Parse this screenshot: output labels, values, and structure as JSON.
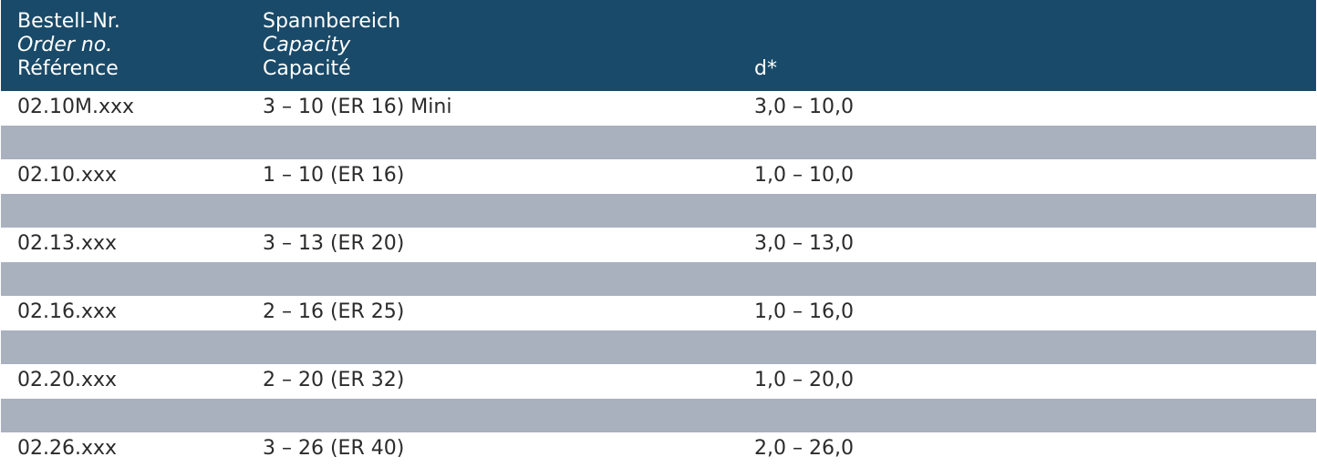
{
  "header": {
    "col1": [
      "Bestell-Nr.",
      "Order no.",
      "Référence"
    ],
    "col2": [
      "Spannbereich",
      "Capacity",
      "Capacité"
    ],
    "col3": "d*"
  },
  "rows": [
    {
      "order": "02.10M.xxx",
      "capacity": "3 – 10  (ER 16) Mini",
      "d": "3,0 – 10,0"
    },
    {
      "order": "02.10.xxx",
      "capacity": "1 – 10  (ER 16)",
      "d": "1,0 – 10,0"
    },
    {
      "order": "02.13.xxx",
      "capacity": "3 – 13  (ER 20)",
      "d": "3,0 – 13,0"
    },
    {
      "order": "02.16.xxx",
      "capacity": "2 – 16  (ER 25)",
      "d": "1,0 – 16,0"
    },
    {
      "order": "02.20.xxx",
      "capacity": "2 – 20  (ER 32)",
      "d": "1,0 – 20,0"
    },
    {
      "order": "02.26.xxx",
      "capacity": "3 – 26  (ER 40)",
      "d": "2,0 – 26,0"
    }
  ],
  "colors": {
    "header_bg": "#194a69",
    "stripe": "#a9b0be"
  }
}
